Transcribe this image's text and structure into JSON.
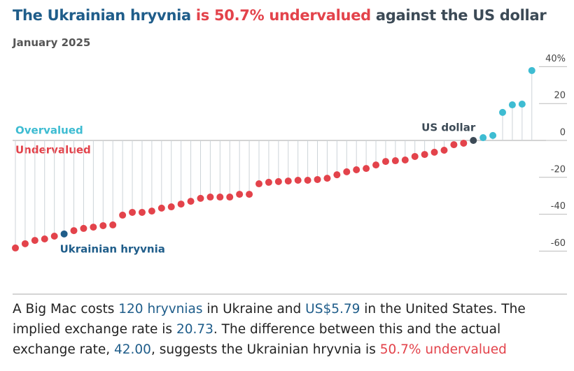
{
  "chart_data": {
    "type": "lollipop",
    "title": [
      {
        "text": "The Ukrainian hryvnia",
        "color": "#1f5d8a"
      },
      {
        "text": "is 50.7% undervalued",
        "color": "#e3434b"
      },
      {
        "text": "against the US dollar",
        "color": "#3c4a56"
      }
    ],
    "subtitle": "January 2025",
    "series": [
      {
        "name": "Overvalued",
        "color": "#3ebcd2"
      },
      {
        "name": "Undervalued",
        "color": "#e3434b"
      }
    ],
    "categories": [
      null,
      null,
      null,
      null,
      null,
      "Ukrainian hryvnia",
      null,
      null,
      null,
      null,
      null,
      null,
      null,
      null,
      null,
      null,
      null,
      null,
      null,
      null,
      null,
      null,
      null,
      null,
      null,
      null,
      null,
      null,
      null,
      null,
      null,
      null,
      null,
      null,
      null,
      null,
      null,
      null,
      null,
      null,
      null,
      null,
      null,
      null,
      null,
      null,
      null,
      "US dollar",
      null,
      null,
      null,
      null,
      null,
      null
    ],
    "values": [
      -58.3,
      -56,
      -54.2,
      -53.4,
      -51.9,
      -50.7,
      -48.9,
      -47.7,
      -47,
      -46.2,
      -45.8,
      -40.5,
      -39,
      -39,
      -38.3,
      -36.7,
      -36,
      -34.5,
      -33,
      -31.4,
      -30.7,
      -30.7,
      -30.7,
      -29.2,
      -29.2,
      -23.5,
      -22.7,
      -22.3,
      -22,
      -21.6,
      -21.6,
      -21.2,
      -20.5,
      -18.6,
      -17,
      -15.9,
      -15.2,
      -13.3,
      -11.4,
      -11,
      -10.6,
      -8.7,
      -7.6,
      -6.4,
      -5.3,
      -2.3,
      -1.5,
      0,
      1.5,
      2.7,
      15.2,
      19.3,
      19.7,
      37.9
    ],
    "highlight": {
      "Ukrainian hryvnia": "#1f5d8a",
      "US dollar": "#3c4a56"
    },
    "ylim": [
      -68,
      43
    ],
    "yticks": [
      {
        "value": 40,
        "label": "40%"
      },
      20,
      0,
      -20,
      -40,
      -60
    ],
    "note": [
      {
        "text": "A Big Mac costs ",
        "color": "#222222"
      },
      {
        "text": "120 hryvnias",
        "color": "#1f5d8a"
      },
      {
        "text": " in Ukraine and ",
        "color": "#222222"
      },
      {
        "text": "US$5.79",
        "color": "#1f5d8a"
      },
      {
        "text": " in the United States. The implied exchange rate is ",
        "color": "#222222"
      },
      {
        "text": "20.73",
        "color": "#1f5d8a"
      },
      {
        "text": ". The difference between this and the actual exchange rate, ",
        "color": "#222222"
      },
      {
        "text": "42.00",
        "color": "#1f5d8a"
      },
      {
        "text": ", suggests the Ukrainian hryvnia is ",
        "color": "#222222"
      },
      {
        "text": "50.7% undervalued",
        "color": "#e3434b"
      }
    ]
  }
}
